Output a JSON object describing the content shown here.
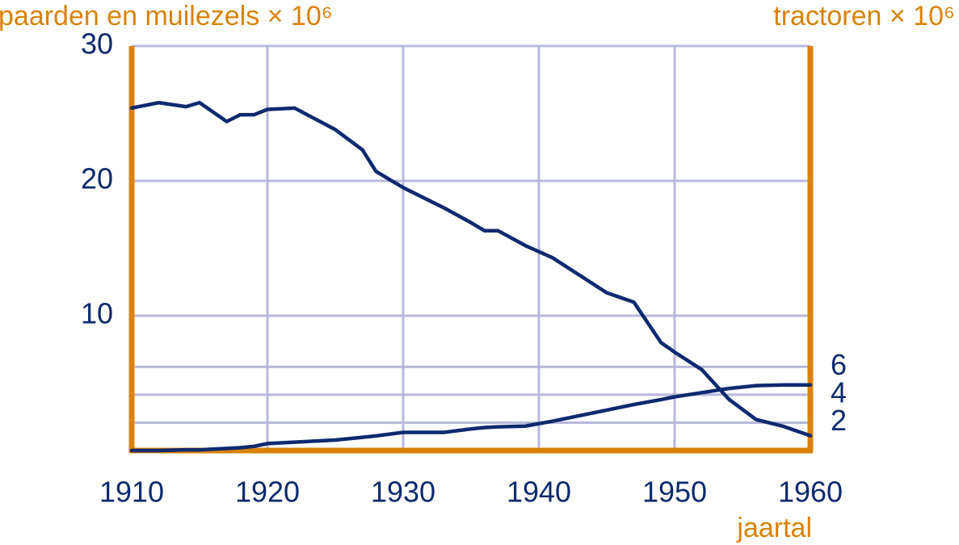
{
  "chart_data": {
    "type": "line",
    "y_label": "paarden en muilezels × 10⁶",
    "y2_label": "tractoren × 10⁶",
    "x_label": "jaartal",
    "x": [
      1910,
      1912,
      1914,
      1915,
      1917,
      1918,
      1919,
      1920,
      1922,
      1925,
      1927,
      1928,
      1930,
      1933,
      1935,
      1936,
      1937,
      1939,
      1941,
      1943,
      1945,
      1947,
      1949,
      1950,
      1952,
      1954,
      1956,
      1958,
      1960
    ],
    "xlim": [
      1910,
      1960
    ],
    "xticks": [
      1910,
      1920,
      1930,
      1940,
      1950,
      1960
    ],
    "ylim": [
      0,
      30
    ],
    "yticks": [
      10,
      20,
      30
    ],
    "y2lim": [
      0,
      29
    ],
    "y2ticks": [
      2,
      4,
      6
    ],
    "grid": true,
    "series": [
      {
        "color": "#0d2a6e",
        "values": [
          25.4,
          25.8,
          25.5,
          25.8,
          24.4,
          24.9,
          24.9,
          25.3,
          25.4,
          23.8,
          22.3,
          20.7,
          19.5,
          18.0,
          16.9,
          16.3,
          16.3,
          15.2,
          14.3,
          13.0,
          11.7,
          11.0,
          8.0,
          7.3,
          6.0,
          3.8,
          2.3,
          1.8,
          1.1
        ]
      },
      {
        "color": "#0d2a6e",
        "axis": "y2",
        "values": [
          0,
          0,
          0.05,
          0.05,
          0.15,
          0.2,
          0.3,
          0.5,
          0.6,
          0.75,
          0.95,
          1.05,
          1.3,
          1.3,
          1.55,
          1.65,
          1.7,
          1.75,
          2.1,
          2.5,
          2.9,
          3.3,
          3.65,
          3.85,
          4.15,
          4.45,
          4.65,
          4.7,
          4.7
        ]
      }
    ]
  }
}
